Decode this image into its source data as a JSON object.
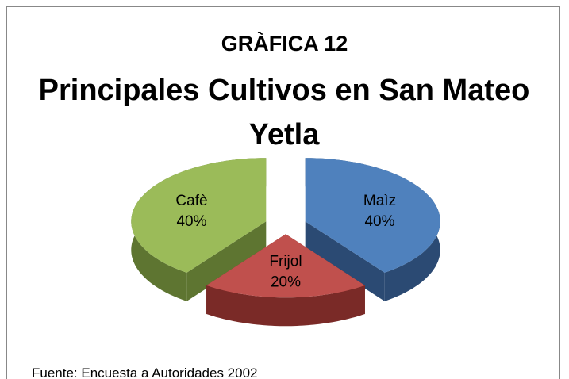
{
  "chart_data": {
    "type": "pie",
    "subtitle": "GRÀFICA 12",
    "title": "Principales Cultivos en San Mateo Yetla",
    "categories": [
      "Maìz",
      "Frijol",
      "Cafè"
    ],
    "values": [
      40,
      20,
      40
    ],
    "value_labels": [
      "40%",
      "20%",
      "40%"
    ],
    "colors": [
      "#4f81bd",
      "#c0504d",
      "#9bbb59"
    ],
    "side_colors": [
      "#2b4a73",
      "#7a2a27",
      "#5e7531"
    ],
    "source": "Fuente: Encuesta  a Autoridades 2002"
  }
}
